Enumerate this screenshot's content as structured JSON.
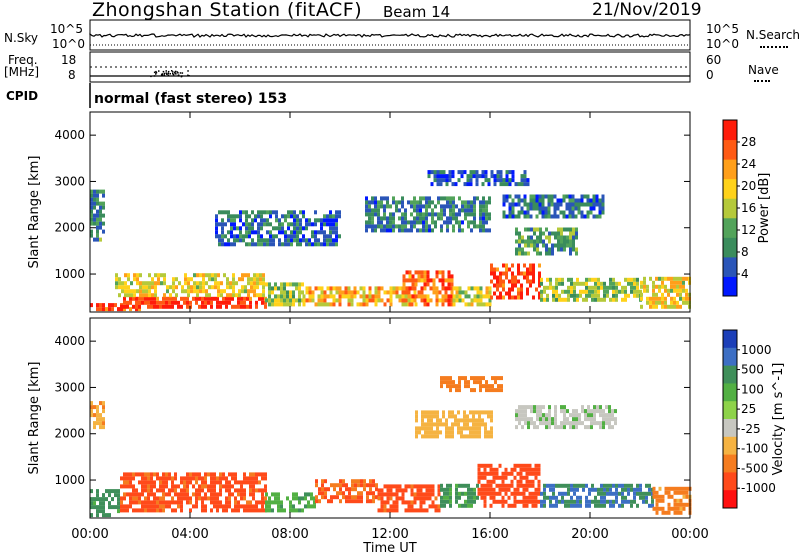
{
  "header": {
    "station_title": "Zhongshan Station (fitACF)",
    "beam": "Beam 14",
    "date": "21/Nov/2019"
  },
  "strip_panels": {
    "nsky": {
      "left_label": "N.Sky",
      "ticks": [
        "10^5",
        "10^0"
      ],
      "right_label": "N.Search",
      "right_ticks": [
        "10^5",
        "10^0"
      ]
    },
    "freq": {
      "left_label": "Freq.",
      "left_unit": "[MHz]",
      "ticks": [
        "18",
        "8"
      ],
      "right_label": "Nave",
      "right_ticks": [
        "60",
        "0"
      ]
    },
    "cpid": {
      "label": "CPID",
      "mode_text": "normal (fast stereo) 153"
    }
  },
  "colors": {
    "power": [
      "#0018ff",
      "#2a55b8",
      "#3a8c5c",
      "#52a35a",
      "#b5c93a",
      "#ffd21a",
      "#ff9f1a",
      "#ff5a14",
      "#ff1c0a"
    ],
    "velocity_pos": [
      "#1c3fb8",
      "#3d6fc4",
      "#3f8f5a",
      "#52b043",
      "#8ed34a"
    ],
    "velocity_neg": [
      "#c7c7c0",
      "#f5b342",
      "#f57c1f",
      "#ff4a1a",
      "#ff0f0f"
    ]
  },
  "chart_data": [
    {
      "type": "heatmap",
      "name": "power",
      "xlabel": "Time UT",
      "ylabel": "Slant Range [km]",
      "x_ticks": [
        "00:00",
        "04:00",
        "08:00",
        "12:00",
        "16:00",
        "20:00",
        "00:00"
      ],
      "xlim": [
        0,
        24
      ],
      "ylim": [
        180,
        4500
      ],
      "y_ticks": [
        1000,
        2000,
        3000,
        4000
      ],
      "colorbar": {
        "label": "Power [dB]",
        "ticks": [
          "4",
          "8",
          "12",
          "16",
          "20",
          "24",
          "28"
        ],
        "range": [
          0,
          30
        ]
      },
      "regions": [
        {
          "t": [
            0.0,
            2.0
          ],
          "r": [
            200,
            350
          ],
          "v": 26
        },
        {
          "t": [
            1.2,
            7.0
          ],
          "r": [
            250,
            500
          ],
          "v": 28
        },
        {
          "t": [
            1.0,
            7.0
          ],
          "r": [
            500,
            950
          ],
          "v": 18
        },
        {
          "t": [
            0.0,
            0.6
          ],
          "r": [
            1700,
            2800
          ],
          "v": 9
        },
        {
          "t": [
            7.0,
            8.5
          ],
          "r": [
            300,
            800
          ],
          "v": 14
        },
        {
          "t": [
            8.5,
            13.0
          ],
          "r": [
            300,
            700
          ],
          "v": 20
        },
        {
          "t": [
            12.5,
            14.5
          ],
          "r": [
            300,
            1000
          ],
          "v": 24
        },
        {
          "t": [
            14.5,
            16.0
          ],
          "r": [
            300,
            700
          ],
          "v": 16
        },
        {
          "t": [
            16.0,
            18.0
          ],
          "r": [
            450,
            1200
          ],
          "v": 27
        },
        {
          "t": [
            18.0,
            22.0
          ],
          "r": [
            400,
            900
          ],
          "v": 14
        },
        {
          "t": [
            22.0,
            24.0
          ],
          "r": [
            250,
            900
          ],
          "v": 18
        },
        {
          "t": [
            11.0,
            16.0
          ],
          "r": [
            1900,
            2600
          ],
          "v": 8
        },
        {
          "t": [
            16.5,
            20.5
          ],
          "r": [
            2200,
            2700
          ],
          "v": 7
        },
        {
          "t": [
            13.5,
            17.5
          ],
          "r": [
            2900,
            3200
          ],
          "v": 5
        },
        {
          "t": [
            5.0,
            10.0
          ],
          "r": [
            1600,
            2300
          ],
          "v": 6
        },
        {
          "t": [
            17.0,
            19.5
          ],
          "r": [
            1400,
            2000
          ],
          "v": 10
        }
      ]
    },
    {
      "type": "heatmap",
      "name": "velocity",
      "xlabel": "Time UT",
      "ylabel": "Slant Range [km]",
      "x_ticks": [
        "00:00",
        "04:00",
        "08:00",
        "12:00",
        "16:00",
        "20:00",
        "00:00"
      ],
      "xlim": [
        0,
        24
      ],
      "ylim": [
        180,
        4500
      ],
      "y_ticks": [
        1000,
        2000,
        3000,
        4000
      ],
      "colorbar": {
        "label": "Velocity [m s^-1]",
        "ticks": [
          "1000",
          "500",
          "100",
          "25",
          "-25",
          "-100",
          "-500",
          "-1000"
        ]
      },
      "regions": [
        {
          "t": [
            0.0,
            1.2
          ],
          "r": [
            200,
            800
          ],
          "v": 150
        },
        {
          "t": [
            1.2,
            7.0
          ],
          "r": [
            300,
            1100
          ],
          "v": -400
        },
        {
          "t": [
            0.0,
            0.6
          ],
          "r": [
            2100,
            2700
          ],
          "v": -80
        },
        {
          "t": [
            7.0,
            9.0
          ],
          "r": [
            300,
            700
          ],
          "v": 80
        },
        {
          "t": [
            9.0,
            11.5
          ],
          "r": [
            500,
            1000
          ],
          "v": -300
        },
        {
          "t": [
            11.5,
            14.0
          ],
          "r": [
            300,
            900
          ],
          "v": -450
        },
        {
          "t": [
            14.0,
            15.5
          ],
          "r": [
            400,
            900
          ],
          "v": 120
        },
        {
          "t": [
            15.5,
            18.0
          ],
          "r": [
            400,
            1300
          ],
          "v": -500
        },
        {
          "t": [
            18.0,
            22.5
          ],
          "r": [
            400,
            900
          ],
          "v": 300
        },
        {
          "t": [
            22.5,
            24.0
          ],
          "r": [
            250,
            800
          ],
          "v": -150
        },
        {
          "t": [
            17.0,
            21.0
          ],
          "r": [
            2100,
            2600
          ],
          "v": 10
        },
        {
          "t": [
            13.0,
            16.0
          ],
          "r": [
            1900,
            2500
          ],
          "v": -60
        },
        {
          "t": [
            14.0,
            16.5
          ],
          "r": [
            2900,
            3200
          ],
          "v": -200
        }
      ]
    }
  ]
}
